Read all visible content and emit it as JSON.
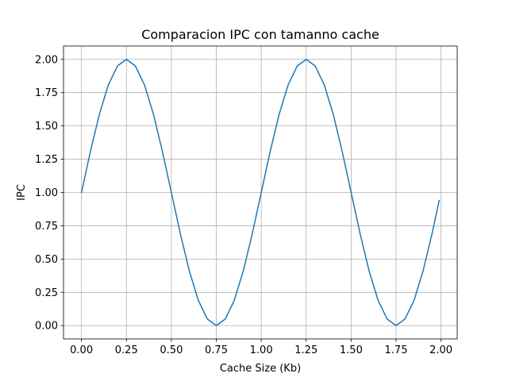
{
  "chart_data": {
    "type": "line",
    "title": "Comparacion IPC con tamanno cache",
    "xlabel": "Cache Size (Kb)",
    "ylabel": "IPC",
    "xlim": [
      -0.1,
      2.09
    ],
    "ylim": [
      -0.1,
      2.1
    ],
    "x_ticks": [
      "0.00",
      "0.25",
      "0.50",
      "0.75",
      "1.00",
      "1.25",
      "1.50",
      "1.75",
      "2.00"
    ],
    "y_ticks": [
      "0.00",
      "0.25",
      "0.50",
      "0.75",
      "1.00",
      "1.25",
      "1.50",
      "1.75",
      "2.00"
    ],
    "grid": true,
    "series": [
      {
        "color": "#1f77b4",
        "x": [
          0.0,
          0.05,
          0.1,
          0.15,
          0.2,
          0.25,
          0.3,
          0.35,
          0.4,
          0.45,
          0.5,
          0.55,
          0.6,
          0.65,
          0.7,
          0.75,
          0.8,
          0.85,
          0.9,
          0.95,
          1.0,
          1.05,
          1.1,
          1.15,
          1.2,
          1.25,
          1.3,
          1.35,
          1.4,
          1.45,
          1.5,
          1.55,
          1.6,
          1.65,
          1.7,
          1.75,
          1.8,
          1.85,
          1.9,
          1.95,
          1.99
        ],
        "values": [
          1.0,
          1.31,
          1.59,
          1.81,
          1.95,
          2.0,
          1.95,
          1.81,
          1.59,
          1.31,
          1.0,
          0.69,
          0.41,
          0.19,
          0.05,
          0.0,
          0.05,
          0.19,
          0.41,
          0.69,
          1.0,
          1.31,
          1.59,
          1.81,
          1.95,
          2.0,
          1.95,
          1.81,
          1.59,
          1.31,
          1.0,
          0.69,
          0.41,
          0.19,
          0.05,
          0.0,
          0.05,
          0.19,
          0.41,
          0.69,
          0.94
        ]
      }
    ]
  }
}
